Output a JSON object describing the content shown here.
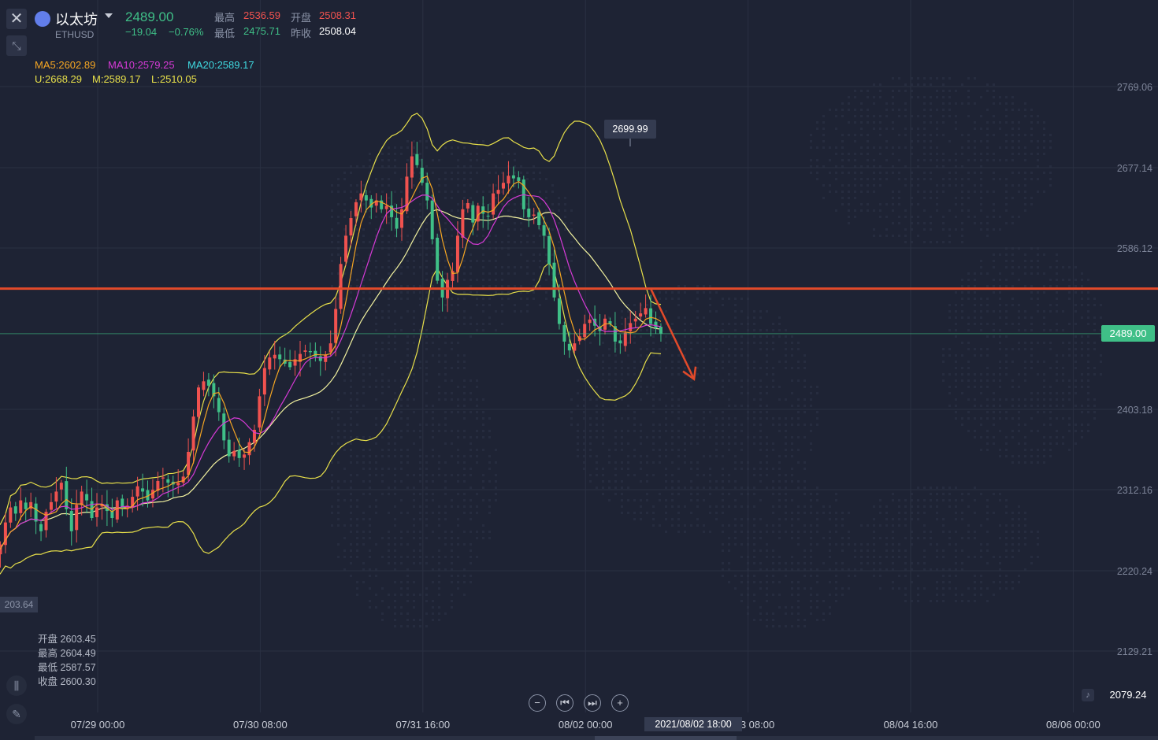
{
  "header": {
    "coin_name": "以太坊",
    "symbol": "ETHUSD",
    "price": "2489.00",
    "change": "−19.04",
    "change_pct": "−0.76%",
    "high_label": "最高",
    "high": "2536.59",
    "open_label": "开盘",
    "open": "2508.31",
    "low_label": "最低",
    "low": "2475.71",
    "prev_close_label": "昨收",
    "prev_close": "2508.04"
  },
  "indicators": {
    "ma5": "MA5:2602.89",
    "ma10": "MA10:2579.25",
    "ma20": "MA20:2589.17",
    "boll_u": "U:2668.29",
    "boll_m": "M:2589.17",
    "boll_l": "L:2510.05"
  },
  "colors": {
    "up": "#f0524f",
    "down": "#3fbf87",
    "ma5": "#f5a623",
    "ma10": "#d63ad6",
    "ma20": "#3fd9e0",
    "boll": "#e8e04a",
    "resistance": "#e24a2a",
    "background": "#1e2334",
    "grid": "#2a3042"
  },
  "crosshair_ohlc": {
    "open_label": "开盘",
    "open": "2603.45",
    "high_label": "最高",
    "high": "2604.49",
    "low_label": "最低",
    "low": "2587.57",
    "close_label": "收盘",
    "close": "2600.30"
  },
  "tags": {
    "last_price": "2489.00",
    "peak": "2699.99",
    "left_value": "203.64",
    "bottom_right": "2079.24",
    "crosshair_time": "2021/08/02 18:00"
  },
  "icons": {
    "close": "close-icon",
    "shrink": "shrink-icon",
    "coin": "ethereum-icon",
    "zoom_out": "zoom-out-icon",
    "prev": "skip-back-icon",
    "next": "skip-forward-icon",
    "zoom_in": "zoom-in-icon",
    "bell": "bell-icon",
    "candle": "candle-type-icon",
    "pencil": "pencil-icon"
  },
  "chart_data": {
    "type": "candlestick",
    "y_ticks": [
      "2769.06",
      "2677.14",
      "2586.12",
      "2403.18",
      "2312.16",
      "2220.24",
      "2129.21"
    ],
    "y_tick_values": [
      2769.06,
      2677.14,
      2586.12,
      2403.18,
      2312.16,
      2220.24,
      2129.21
    ],
    "x_ticks": [
      "07/29 00:00",
      "07/30 08:00",
      "07/31 16:00",
      "08/02 00:00",
      "—/03 08:00",
      "08/04 16:00",
      "08/06 00:00"
    ],
    "x_tick_index": [
      20,
      52,
      84,
      116,
      148,
      180,
      212
    ],
    "resistance_level": 2540,
    "current_price": 2489.0,
    "closes": [
      2240,
      2250,
      2275,
      2292,
      2285,
      2300,
      2290,
      2298,
      2276,
      2265,
      2287,
      2298,
      2310,
      2320,
      2290,
      2265,
      2295,
      2310,
      2300,
      2280,
      2292,
      2296,
      2288,
      2280,
      2300,
      2290,
      2294,
      2304,
      2316,
      2310,
      2300,
      2312,
      2322,
      2326,
      2320,
      2318,
      2320,
      2327,
      2355,
      2395,
      2428,
      2435,
      2430,
      2418,
      2400,
      2368,
      2350,
      2356,
      2348,
      2352,
      2366,
      2380,
      2418,
      2450,
      2462,
      2465,
      2460,
      2455,
      2451,
      2460,
      2466,
      2470,
      2468,
      2463,
      2458,
      2465,
      2478,
      2517,
      2568,
      2600,
      2620,
      2638,
      2648,
      2640,
      2632,
      2640,
      2630,
      2634,
      2621,
      2608,
      2630,
      2667,
      2690,
      2680,
      2660,
      2640,
      2596,
      2549,
      2530,
      2550,
      2560,
      2600,
      2630,
      2637,
      2615,
      2634,
      2625,
      2622,
      2648,
      2652,
      2660,
      2668,
      2665,
      2662,
      2630,
      2621,
      2624,
      2612,
      2600,
      2568,
      2530,
      2500,
      2480,
      2470,
      2478,
      2486,
      2500,
      2505,
      2498,
      2492,
      2506,
      2500,
      2480,
      2478,
      2490,
      2501,
      2506,
      2512,
      2518,
      2500,
      2495,
      2489
    ],
    "boll_upper_approx": "follows price with bands ~±90",
    "annotation": "downward arrow near last bars"
  }
}
